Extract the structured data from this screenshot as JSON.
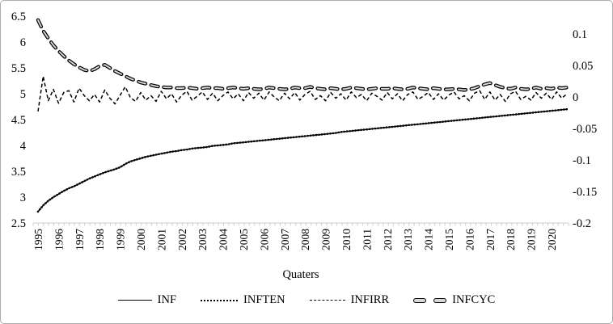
{
  "chart_data": {
    "type": "line",
    "title": "",
    "xlabel": "Quaters",
    "x_axis": {
      "label": "Quaters",
      "frequency": "quarterly",
      "year_labels": [
        "1995",
        "1996",
        "1997",
        "1998",
        "1999",
        "2000",
        "2001",
        "2002",
        "2003",
        "2004",
        "2005",
        "2006",
        "2007",
        "2008",
        "2009",
        "2010",
        "2011",
        "2012",
        "2013",
        "2014",
        "2015",
        "2016",
        "2017",
        "2018",
        "2019",
        "2020"
      ]
    },
    "left_axis": {
      "min": 2.5,
      "max": 6.5,
      "ticks": [
        {
          "value": 6.5,
          "label": "6.5"
        },
        {
          "value": 6.0,
          "label": "6"
        },
        {
          "value": 5.5,
          "label": "5.5"
        },
        {
          "value": 5.0,
          "label": "5"
        },
        {
          "value": 4.5,
          "label": "4.5"
        },
        {
          "value": 4.0,
          "label": "4"
        },
        {
          "value": 3.5,
          "label": "3.5"
        },
        {
          "value": 3.0,
          "label": "3"
        },
        {
          "value": 2.5,
          "label": "2.5"
        }
      ]
    },
    "right_axis": {
      "min": -0.2,
      "max": 0.13,
      "ticks": [
        {
          "value": 0.1,
          "label": "0.1"
        },
        {
          "value": 0.05,
          "label": "0.05"
        },
        {
          "value": 0.0,
          "label": "0"
        },
        {
          "value": -0.05,
          "label": "-0.05"
        },
        {
          "value": -0.1,
          "label": "-0.1"
        },
        {
          "value": -0.15,
          "label": "-0.15"
        },
        {
          "value": -0.2,
          "label": "-0.2"
        }
      ]
    },
    "legend": {
      "position": "bottom",
      "entries": [
        "INF",
        "INFTEN",
        "INFIRR",
        "INFCYC"
      ]
    },
    "colors": {
      "line": "#000000",
      "axis": "#cfcfcf",
      "dash_fill": "#d9d9d9",
      "border": "#ababab"
    },
    "series": [
      {
        "name": "INF",
        "axis": "left",
        "style": "solid",
        "values": [
          2.72,
          2.84,
          2.93,
          3.0,
          3.06,
          3.12,
          3.17,
          3.21,
          3.26,
          3.31,
          3.36,
          3.4,
          3.44,
          3.48,
          3.51,
          3.54,
          3.58,
          3.64,
          3.69,
          3.72,
          3.75,
          3.78,
          3.8,
          3.82,
          3.84,
          3.86,
          3.88,
          3.89,
          3.91,
          3.92,
          3.94,
          3.95,
          3.96,
          3.97,
          3.99,
          4.0,
          4.01,
          4.02,
          4.04,
          4.05,
          4.06,
          4.07,
          4.08,
          4.09,
          4.1,
          4.11,
          4.12,
          4.13,
          4.14,
          4.15,
          4.16,
          4.17,
          4.18,
          4.19,
          4.2,
          4.21,
          4.22,
          4.23,
          4.24,
          4.26,
          4.27,
          4.28,
          4.29,
          4.3,
          4.31,
          4.32,
          4.33,
          4.34,
          4.35,
          4.36,
          4.37,
          4.38,
          4.39,
          4.4,
          4.41,
          4.42,
          4.43,
          4.44,
          4.45,
          4.46,
          4.47,
          4.48,
          4.49,
          4.5,
          4.51,
          4.52,
          4.53,
          4.54,
          4.55,
          4.56,
          4.57,
          4.58,
          4.59,
          4.6,
          4.61,
          4.62,
          4.63,
          4.64,
          4.65,
          4.66,
          4.67,
          4.68,
          4.69,
          4.7
        ]
      },
      {
        "name": "INFTEN",
        "axis": "left",
        "style": "dotted",
        "values": [
          2.72,
          2.84,
          2.93,
          3.0,
          3.06,
          3.12,
          3.17,
          3.21,
          3.26,
          3.31,
          3.36,
          3.4,
          3.44,
          3.48,
          3.51,
          3.54,
          3.58,
          3.64,
          3.69,
          3.72,
          3.75,
          3.78,
          3.8,
          3.82,
          3.84,
          3.86,
          3.88,
          3.89,
          3.91,
          3.92,
          3.94,
          3.95,
          3.96,
          3.97,
          3.99,
          4.0,
          4.01,
          4.02,
          4.04,
          4.05,
          4.06,
          4.07,
          4.08,
          4.09,
          4.1,
          4.11,
          4.12,
          4.13,
          4.14,
          4.15,
          4.16,
          4.17,
          4.18,
          4.19,
          4.2,
          4.21,
          4.22,
          4.23,
          4.24,
          4.26,
          4.27,
          4.28,
          4.29,
          4.3,
          4.31,
          4.32,
          4.33,
          4.34,
          4.35,
          4.36,
          4.37,
          4.38,
          4.39,
          4.4,
          4.41,
          4.42,
          4.43,
          4.44,
          4.45,
          4.46,
          4.47,
          4.48,
          4.49,
          4.5,
          4.51,
          4.52,
          4.53,
          4.54,
          4.55,
          4.56,
          4.57,
          4.58,
          4.59,
          4.6,
          4.61,
          4.62,
          4.63,
          4.64,
          4.65,
          4.66,
          4.67,
          4.68,
          4.69,
          4.7
        ]
      },
      {
        "name": "INFIRR",
        "axis": "right",
        "style": "dashed-thin",
        "values": [
          -0.023,
          0.033,
          -0.006,
          0.012,
          -0.01,
          0.007,
          0.01,
          -0.008,
          0.014,
          0.002,
          -0.006,
          0.004,
          -0.008,
          0.011,
          -0.002,
          -0.011,
          0.003,
          0.016,
          -0.001,
          -0.007,
          0.007,
          -0.005,
          0.002,
          -0.007,
          0.009,
          -0.003,
          0.005,
          -0.008,
          0.003,
          0.009,
          -0.005,
          0.001,
          0.008,
          -0.004,
          0.006,
          -0.006,
          0.002,
          0.008,
          -0.003,
          0.005,
          -0.006,
          0.007,
          -0.002,
          0.006,
          -0.005,
          0.008,
          0.0,
          -0.006,
          0.006,
          -0.003,
          0.007,
          -0.005,
          0.004,
          0.009,
          -0.004,
          0.002,
          -0.006,
          0.007,
          -0.002,
          0.005,
          -0.005,
          0.008,
          -0.001,
          0.004,
          -0.006,
          0.006,
          0.001,
          -0.005,
          0.007,
          -0.003,
          0.005,
          -0.006,
          0.004,
          0.008,
          -0.004,
          0.001,
          0.007,
          -0.004,
          0.005,
          -0.005,
          0.003,
          0.008,
          -0.003,
          0.002,
          -0.006,
          0.006,
          0.01,
          -0.004,
          0.008,
          -0.005,
          0.004,
          -0.007,
          0.005,
          0.009,
          -0.004,
          0.001,
          -0.005,
          0.007,
          -0.002,
          0.006,
          -0.004,
          0.008,
          -0.002,
          0.005
        ]
      },
      {
        "name": "INFCYC",
        "axis": "right",
        "style": "dashed-thick",
        "values": [
          0.122,
          0.105,
          0.093,
          0.082,
          0.073,
          0.065,
          0.058,
          0.052,
          0.047,
          0.043,
          0.041,
          0.044,
          0.049,
          0.051,
          0.046,
          0.041,
          0.037,
          0.033,
          0.029,
          0.026,
          0.023,
          0.021,
          0.019,
          0.017,
          0.016,
          0.015,
          0.015,
          0.014,
          0.014,
          0.015,
          0.014,
          0.013,
          0.014,
          0.015,
          0.014,
          0.014,
          0.013,
          0.014,
          0.015,
          0.014,
          0.013,
          0.014,
          0.013,
          0.012,
          0.013,
          0.015,
          0.014,
          0.013,
          0.012,
          0.013,
          0.015,
          0.014,
          0.014,
          0.016,
          0.014,
          0.013,
          0.012,
          0.014,
          0.013,
          0.012,
          0.013,
          0.015,
          0.014,
          0.013,
          0.012,
          0.013,
          0.014,
          0.013,
          0.013,
          0.014,
          0.013,
          0.012,
          0.013,
          0.015,
          0.014,
          0.013,
          0.012,
          0.014,
          0.013,
          0.012,
          0.012,
          0.013,
          0.012,
          0.011,
          0.012,
          0.014,
          0.017,
          0.02,
          0.022,
          0.019,
          0.016,
          0.014,
          0.013,
          0.015,
          0.013,
          0.012,
          0.013,
          0.015,
          0.013,
          0.014,
          0.013,
          0.015,
          0.014,
          0.015
        ]
      }
    ]
  }
}
